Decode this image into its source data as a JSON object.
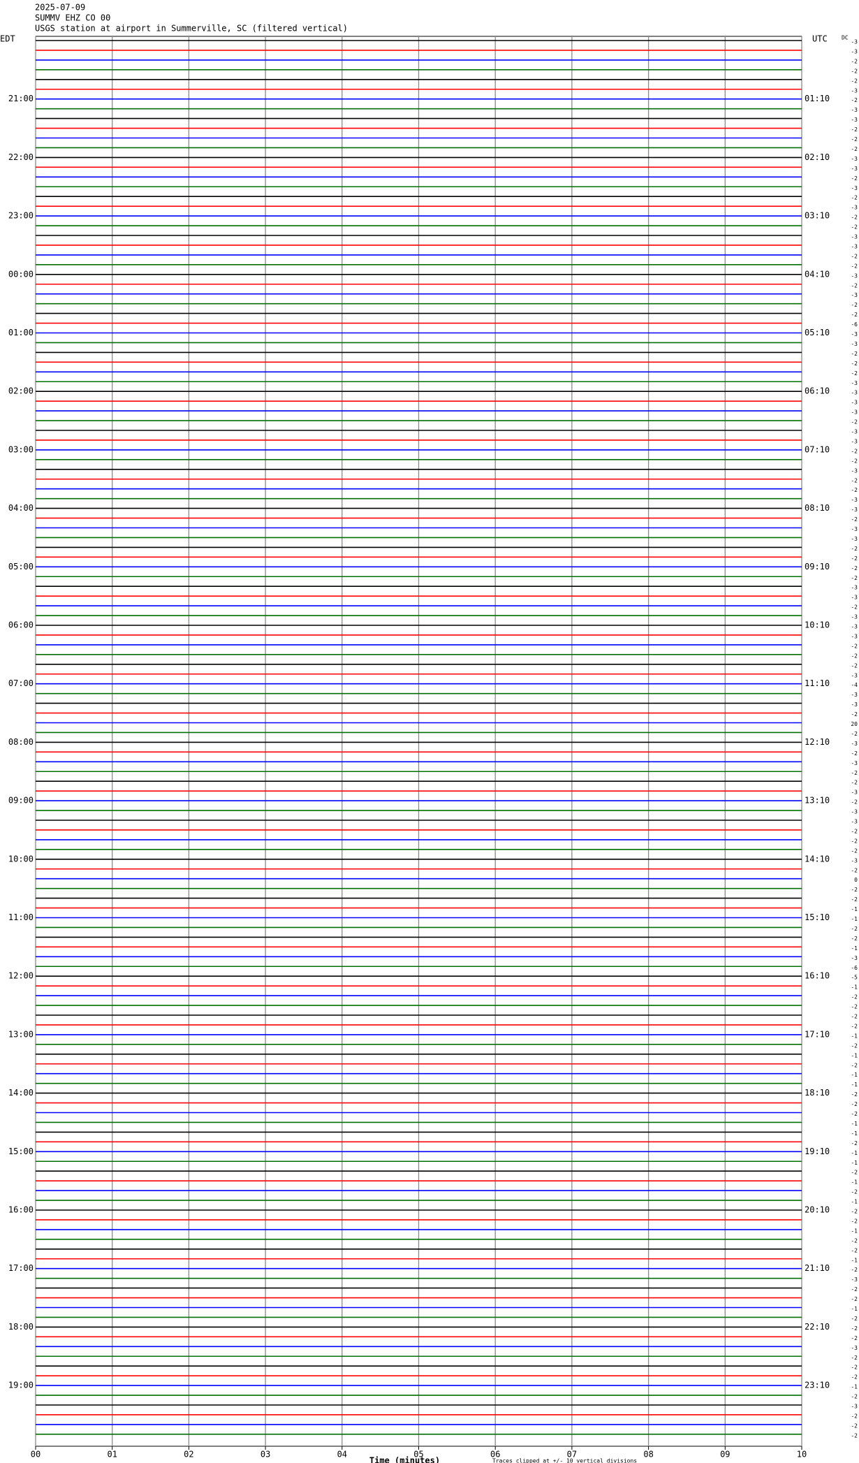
{
  "chart_data": {
    "type": "helicorder",
    "title": "2025-07-09",
    "station": "SUMMV EHZ CO 00",
    "description": "USGS station at airport in Summerville, SC (filtered vertical)",
    "left_axis_label": "EDT",
    "right_axis_label": "UTC",
    "dc_label": "DC",
    "left_times": [
      "21:00",
      "22:00",
      "23:00",
      "00:00",
      "01:00",
      "02:00",
      "03:00",
      "04:00",
      "05:00",
      "06:00",
      "07:00",
      "08:00",
      "09:00",
      "10:00",
      "11:00",
      "12:00",
      "13:00",
      "14:00",
      "15:00",
      "16:00",
      "17:00",
      "18:00",
      "19:00"
    ],
    "right_times": [
      "01:10",
      "02:10",
      "03:10",
      "04:10",
      "05:10",
      "06:10",
      "07:10",
      "08:10",
      "09:10",
      "10:10",
      "11:10",
      "12:10",
      "13:10",
      "14:10",
      "15:10",
      "16:10",
      "17:10",
      "18:10",
      "19:10",
      "20:10",
      "21:10",
      "22:10",
      "23:10"
    ],
    "dc_offsets": [
      -3,
      -3,
      -2,
      -2,
      -2,
      -3,
      -2,
      -3,
      -3,
      -2,
      -2,
      -2,
      -3,
      -3,
      -2,
      -3,
      -2,
      -3,
      -2,
      -2,
      -3,
      -3,
      -2,
      -2,
      -3,
      -2,
      -3,
      -2,
      -2,
      -6,
      -3,
      -3,
      -2,
      -2,
      -2,
      -3,
      -3,
      -3,
      -3,
      -2,
      -3,
      -3,
      -2,
      -2,
      -3,
      -2,
      -2,
      -3,
      -3,
      -2,
      -3,
      -3,
      -2,
      -2,
      -2,
      -2,
      -3,
      -3,
      -2,
      -3,
      -3,
      -3,
      -2,
      -2,
      -2,
      -3,
      -4,
      -3,
      -3,
      -2,
      20,
      -2,
      -3,
      -2,
      -3,
      -2,
      -2,
      -3,
      -2,
      -3,
      -3,
      -2,
      -2,
      -2,
      -3,
      -2,
      0,
      -2,
      -2,
      -1,
      -1,
      -2,
      -2,
      -1,
      -3,
      -6,
      -5,
      -1,
      -2,
      -2,
      -2,
      -2,
      -1,
      -2,
      -1,
      -2,
      -1,
      -1,
      -2,
      -2,
      -2,
      -1,
      -1,
      -2,
      -1,
      -1,
      -2,
      -1,
      -2,
      -1,
      -2,
      -2,
      -1,
      -2,
      -2,
      -1,
      -2,
      -3,
      -2,
      -2,
      -1,
      -2,
      -2,
      -2,
      -3,
      -2,
      -2,
      -2,
      -1,
      -2,
      -3,
      -2,
      -2,
      -2
    ],
    "trace_colors": [
      "#000000",
      "#ff0000",
      "#0000ff",
      "#007000"
    ],
    "xlim": [
      0,
      10
    ],
    "xticks": [
      {
        "value": 0,
        "label": "00"
      },
      {
        "value": 1,
        "label": "01"
      },
      {
        "value": 2,
        "label": "02"
      },
      {
        "value": 3,
        "label": "03"
      },
      {
        "value": 4,
        "label": "04"
      },
      {
        "value": 5,
        "label": "05"
      },
      {
        "value": 6,
        "label": "06"
      },
      {
        "value": 7,
        "label": "07"
      },
      {
        "value": 8,
        "label": "08"
      },
      {
        "value": 9,
        "label": "09"
      },
      {
        "value": 10,
        "label": "10"
      }
    ],
    "xlabel": "Time (minutes)",
    "note": "Traces clipped at +/- 10 vertical divisions",
    "grid": true
  }
}
